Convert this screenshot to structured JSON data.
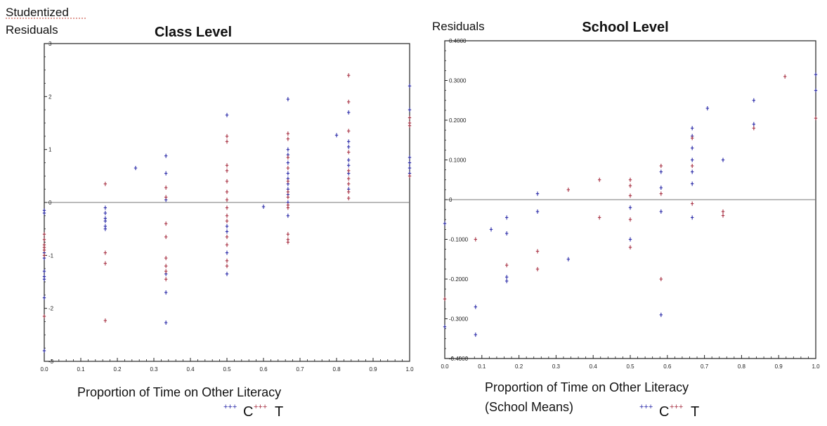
{
  "chart_data": [
    {
      "type": "scatter",
      "title": "Class Level",
      "ylabel": [
        "Studentized",
        "Residuals"
      ],
      "xlabel": [
        "Proportion of Time on Other Literacy"
      ],
      "xlim": [
        0,
        1
      ],
      "ylim": [
        -3,
        3
      ],
      "xticks": [
        "0.0",
        "0.1",
        "0.2",
        "0.3",
        "0.4",
        "0.5",
        "0.6",
        "0.7",
        "0.8",
        "0.9",
        "1.0"
      ],
      "yticks": [
        "-3",
        "-2",
        "-1",
        "0",
        "1",
        "2",
        "3"
      ],
      "xtick_values": [
        0,
        0.1,
        0.2,
        0.3,
        0.4,
        0.5,
        0.6,
        0.7,
        0.8,
        0.9,
        1.0
      ],
      "ytick_values": [
        -3,
        -2,
        -1,
        0,
        1,
        2,
        3
      ],
      "reference_line": 0,
      "legend": {
        "position": "bottom",
        "entries": [
          "C",
          "T"
        ],
        "marker": "+++"
      },
      "series": [
        {
          "name": "C",
          "color": "#2a2aa8",
          "points": [
            [
              0,
              -0.15
            ],
            [
              0,
              -0.2
            ],
            [
              0,
              -0.95
            ],
            [
              0,
              -1.05
            ],
            [
              0,
              -1.3
            ],
            [
              0,
              -1.4
            ],
            [
              0,
              -1.45
            ],
            [
              0,
              -1.8
            ],
            [
              0,
              -2.8
            ],
            [
              0.167,
              -0.1
            ],
            [
              0.167,
              -0.2
            ],
            [
              0.167,
              -0.3
            ],
            [
              0.167,
              -0.35
            ],
            [
              0.167,
              -0.45
            ],
            [
              0.167,
              -0.5
            ],
            [
              0.25,
              0.65
            ],
            [
              0.333,
              0.88
            ],
            [
              0.333,
              0.55
            ],
            [
              0.333,
              0.05
            ],
            [
              0.333,
              -1.35
            ],
            [
              0.333,
              -1.7
            ],
            [
              0.333,
              -2.27
            ],
            [
              0.5,
              1.65
            ],
            [
              0.5,
              -0.45
            ],
            [
              0.5,
              -0.55
            ],
            [
              0.5,
              -0.95
            ],
            [
              0.5,
              -1.35
            ],
            [
              0.6,
              -0.08
            ],
            [
              0.667,
              1.95
            ],
            [
              0.667,
              1.0
            ],
            [
              0.667,
              0.9
            ],
            [
              0.667,
              0.75
            ],
            [
              0.667,
              0.55
            ],
            [
              0.667,
              0.45
            ],
            [
              0.667,
              0.35
            ],
            [
              0.667,
              0.25
            ],
            [
              0.667,
              0.15
            ],
            [
              0.667,
              0.0
            ],
            [
              0.667,
              -0.25
            ],
            [
              0.8,
              1.27
            ],
            [
              0.833,
              1.7
            ],
            [
              0.833,
              1.15
            ],
            [
              0.833,
              1.05
            ],
            [
              0.833,
              0.8
            ],
            [
              0.833,
              0.7
            ],
            [
              0.833,
              0.55
            ],
            [
              0.833,
              0.25
            ],
            [
              1.0,
              2.2
            ],
            [
              1.0,
              1.75
            ],
            [
              1.0,
              0.85
            ],
            [
              1.0,
              0.75
            ],
            [
              1.0,
              0.65
            ],
            [
              1.0,
              0.55
            ]
          ]
        },
        {
          "name": "T",
          "color": "#a83244",
          "points": [
            [
              0,
              -0.6
            ],
            [
              0,
              -0.7
            ],
            [
              0,
              -0.8
            ],
            [
              0,
              -0.85
            ],
            [
              0,
              -0.9
            ],
            [
              0,
              -1.0
            ],
            [
              0,
              -2.15
            ],
            [
              0.167,
              0.35
            ],
            [
              0.167,
              -0.95
            ],
            [
              0.167,
              -1.15
            ],
            [
              0.167,
              -2.23
            ],
            [
              0.333,
              0.28
            ],
            [
              0.333,
              0.1
            ],
            [
              0.333,
              -0.4
            ],
            [
              0.333,
              -0.65
            ],
            [
              0.333,
              -1.05
            ],
            [
              0.333,
              -1.2
            ],
            [
              0.333,
              -1.3
            ],
            [
              0.333,
              -1.45
            ],
            [
              0.5,
              1.25
            ],
            [
              0.5,
              1.15
            ],
            [
              0.5,
              0.7
            ],
            [
              0.5,
              0.6
            ],
            [
              0.5,
              0.4
            ],
            [
              0.5,
              0.2
            ],
            [
              0.5,
              0.05
            ],
            [
              0.5,
              -0.1
            ],
            [
              0.5,
              -0.25
            ],
            [
              0.5,
              -0.35
            ],
            [
              0.5,
              -0.65
            ],
            [
              0.5,
              -0.8
            ],
            [
              0.5,
              -1.1
            ],
            [
              0.5,
              -1.2
            ],
            [
              0.667,
              1.3
            ],
            [
              0.667,
              1.2
            ],
            [
              0.667,
              0.85
            ],
            [
              0.667,
              0.65
            ],
            [
              0.667,
              0.4
            ],
            [
              0.667,
              0.2
            ],
            [
              0.667,
              0.1
            ],
            [
              0.667,
              -0.05
            ],
            [
              0.667,
              -0.1
            ],
            [
              0.667,
              -0.6
            ],
            [
              0.667,
              -0.7
            ],
            [
              0.667,
              -0.75
            ],
            [
              0.833,
              2.4
            ],
            [
              0.833,
              1.9
            ],
            [
              0.833,
              1.35
            ],
            [
              0.833,
              0.95
            ],
            [
              0.833,
              0.6
            ],
            [
              0.833,
              0.45
            ],
            [
              0.833,
              0.35
            ],
            [
              0.833,
              0.2
            ],
            [
              0.833,
              0.08
            ],
            [
              1.0,
              1.6
            ],
            [
              1.0,
              1.5
            ],
            [
              1.0,
              1.45
            ],
            [
              1.0,
              0.5
            ]
          ]
        }
      ]
    },
    {
      "type": "scatter",
      "title": "School Level",
      "ylabel": [
        "Residuals"
      ],
      "xlabel": [
        "Proportion of Time on Other Literacy",
        "(School Means)"
      ],
      "xlim": [
        0,
        1
      ],
      "ylim": [
        -0.4,
        0.4
      ],
      "xticks": [
        "0.0",
        "0.1",
        "0.2",
        "0.3",
        "0.4",
        "0.5",
        "0.6",
        "0.7",
        "0.8",
        "0.9",
        "1.0"
      ],
      "yticks": [
        "-0.4000",
        "-0.3000",
        "-0.2000",
        "-0.1000",
        "0",
        "0.1000",
        "0.2000",
        "0.3000",
        "0.4000"
      ],
      "xtick_values": [
        0,
        0.1,
        0.2,
        0.3,
        0.4,
        0.5,
        0.6,
        0.7,
        0.8,
        0.9,
        1.0
      ],
      "ytick_values": [
        -0.4,
        -0.3,
        -0.2,
        -0.1,
        0,
        0.1,
        0.2,
        0.3,
        0.4
      ],
      "reference_line": 0,
      "legend": {
        "position": "bottom",
        "entries": [
          "C",
          "T"
        ],
        "marker": "+++"
      },
      "series": [
        {
          "name": "C",
          "color": "#2a2aa8",
          "points": [
            [
              0,
              -0.06
            ],
            [
              0,
              -0.32
            ],
            [
              0.083,
              -0.27
            ],
            [
              0.083,
              -0.34
            ],
            [
              0.125,
              -0.075
            ],
            [
              0.167,
              -0.045
            ],
            [
              0.167,
              -0.085
            ],
            [
              0.167,
              -0.195
            ],
            [
              0.167,
              -0.205
            ],
            [
              0.25,
              0.015
            ],
            [
              0.25,
              -0.03
            ],
            [
              0.333,
              -0.15
            ],
            [
              0.5,
              -0.02
            ],
            [
              0.5,
              -0.1
            ],
            [
              0.583,
              0.07
            ],
            [
              0.583,
              0.03
            ],
            [
              0.583,
              -0.03
            ],
            [
              0.583,
              -0.29
            ],
            [
              0.667,
              0.18
            ],
            [
              0.667,
              0.16
            ],
            [
              0.667,
              0.13
            ],
            [
              0.667,
              0.1
            ],
            [
              0.667,
              0.07
            ],
            [
              0.667,
              0.04
            ],
            [
              0.667,
              -0.045
            ],
            [
              0.708,
              0.23
            ],
            [
              0.75,
              0.1
            ],
            [
              0.833,
              0.25
            ],
            [
              0.833,
              0.19
            ],
            [
              1.0,
              0.315
            ],
            [
              1.0,
              0.275
            ]
          ]
        },
        {
          "name": "T",
          "color": "#a83244",
          "points": [
            [
              0,
              -0.25
            ],
            [
              0.083,
              -0.1
            ],
            [
              0.167,
              -0.165
            ],
            [
              0.25,
              -0.13
            ],
            [
              0.25,
              -0.175
            ],
            [
              0.333,
              0.025
            ],
            [
              0.417,
              0.05
            ],
            [
              0.417,
              -0.045
            ],
            [
              0.5,
              0.05
            ],
            [
              0.5,
              0.035
            ],
            [
              0.5,
              0.01
            ],
            [
              0.5,
              -0.05
            ],
            [
              0.5,
              -0.12
            ],
            [
              0.583,
              0.085
            ],
            [
              0.583,
              0.015
            ],
            [
              0.583,
              -0.2
            ],
            [
              0.667,
              0.155
            ],
            [
              0.667,
              0.085
            ],
            [
              0.667,
              -0.01
            ],
            [
              0.75,
              -0.03
            ],
            [
              0.75,
              -0.04
            ],
            [
              0.833,
              0.18
            ],
            [
              0.917,
              0.31
            ],
            [
              1.0,
              0.205
            ]
          ]
        }
      ]
    }
  ]
}
